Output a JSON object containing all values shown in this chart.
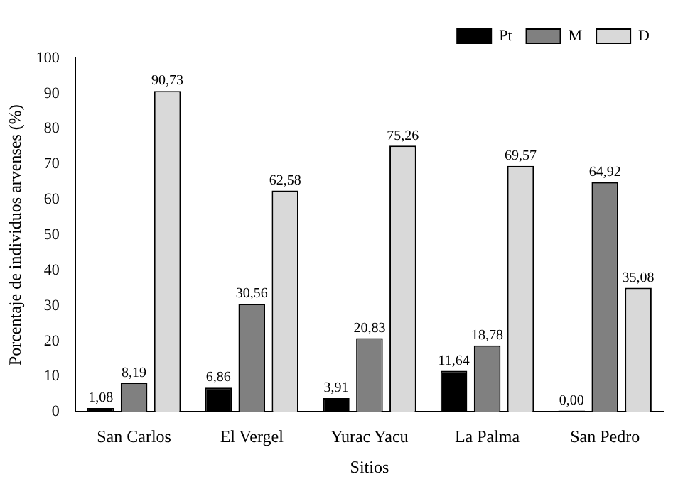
{
  "chart_data": {
    "type": "bar",
    "xlabel": "Sitios",
    "ylabel": "Porcentaje de individuos arvenses (%)",
    "categories": [
      "San Carlos",
      "El Vergel",
      "Yurac Yacu",
      "La Palma",
      "San Pedro"
    ],
    "series": [
      {
        "name": "Pt",
        "color": "#000000",
        "values": [
          1.08,
          6.86,
          3.91,
          11.64,
          0.0
        ],
        "value_labels": [
          "1,08",
          "6,86",
          "3,91",
          "11,64",
          "0,00"
        ]
      },
      {
        "name": "M",
        "color": "#808080",
        "values": [
          8.19,
          30.56,
          20.83,
          18.78,
          64.92
        ],
        "value_labels": [
          "8,19",
          "30,56",
          "20,83",
          "18,78",
          "64,92"
        ]
      },
      {
        "name": "D",
        "color": "#d9d9d9",
        "values": [
          90.73,
          62.58,
          75.26,
          69.57,
          35.08
        ],
        "value_labels": [
          "90,73",
          "62,58",
          "75,26",
          "69,57",
          "35,08"
        ]
      }
    ],
    "ylim": [
      0,
      100
    ],
    "yticks": [
      0,
      10,
      20,
      30,
      40,
      50,
      60,
      70,
      80,
      90,
      100
    ],
    "grid": false,
    "legend": "top right"
  }
}
